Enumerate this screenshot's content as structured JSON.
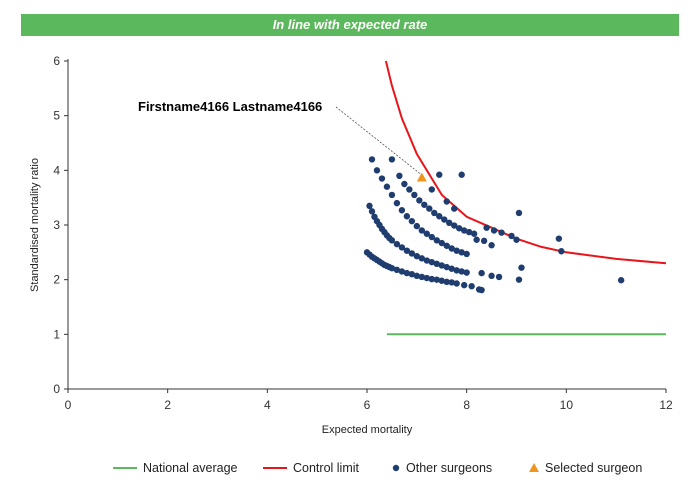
{
  "banner": {
    "text": "In line with expected rate",
    "color": "#5cb85c"
  },
  "chart_data": {
    "type": "scatter",
    "title": "",
    "xlabel": "Expected mortality",
    "ylabel": "Standardised mortality ratio",
    "xlim": [
      0,
      12
    ],
    "ylim": [
      0,
      6
    ],
    "xticks": [
      "0",
      "2",
      "4",
      "6",
      "8",
      "10",
      "12"
    ],
    "yticks": [
      "0",
      "1",
      "2",
      "3",
      "4",
      "5",
      "6"
    ],
    "grid": false,
    "legend_position": "bottom",
    "annotation": {
      "label": "Firstname4166 Lastname4166",
      "x": 7.1,
      "y": 3.87
    },
    "series": [
      {
        "name": "National average",
        "kind": "line",
        "color": "#5cb85c",
        "x": [
          6.4,
          12
        ],
        "y": [
          1,
          1
        ]
      },
      {
        "name": "Control limit",
        "kind": "line",
        "color": "#e8151b",
        "x": [
          6.38,
          6.5,
          6.7,
          7.0,
          7.5,
          8.0,
          8.5,
          9.0,
          9.5,
          10.0,
          11.0,
          12.0
        ],
        "y": [
          6.0,
          5.55,
          4.95,
          4.3,
          3.55,
          3.15,
          2.95,
          2.75,
          2.6,
          2.5,
          2.38,
          2.3
        ]
      },
      {
        "name": "Other surgeons",
        "kind": "scatter",
        "color": "#1f3d6e",
        "points": [
          [
            6.0,
            2.5
          ],
          [
            6.05,
            2.46
          ],
          [
            6.1,
            2.42
          ],
          [
            6.15,
            2.39
          ],
          [
            6.2,
            2.36
          ],
          [
            6.25,
            2.33
          ],
          [
            6.3,
            2.3
          ],
          [
            6.35,
            2.27
          ],
          [
            6.4,
            2.25
          ],
          [
            6.45,
            2.23
          ],
          [
            6.5,
            2.21
          ],
          [
            6.6,
            2.18
          ],
          [
            6.7,
            2.15
          ],
          [
            6.8,
            2.12
          ],
          [
            6.9,
            2.1
          ],
          [
            7.0,
            2.07
          ],
          [
            7.1,
            2.05
          ],
          [
            7.2,
            2.03
          ],
          [
            7.3,
            2.01
          ],
          [
            7.4,
            2.0
          ],
          [
            7.5,
            1.98
          ],
          [
            7.6,
            1.96
          ],
          [
            7.7,
            1.95
          ],
          [
            7.8,
            1.93
          ],
          [
            7.95,
            1.9
          ],
          [
            8.1,
            1.88
          ],
          [
            8.25,
            1.82
          ],
          [
            8.3,
            1.81
          ],
          [
            6.05,
            3.35
          ],
          [
            6.1,
            3.25
          ],
          [
            6.15,
            3.15
          ],
          [
            6.2,
            3.07
          ],
          [
            6.25,
            3.0
          ],
          [
            6.3,
            2.93
          ],
          [
            6.35,
            2.87
          ],
          [
            6.4,
            2.81
          ],
          [
            6.45,
            2.76
          ],
          [
            6.5,
            2.72
          ],
          [
            6.6,
            2.65
          ],
          [
            6.7,
            2.59
          ],
          [
            6.8,
            2.53
          ],
          [
            6.9,
            2.48
          ],
          [
            7.0,
            2.43
          ],
          [
            7.1,
            2.39
          ],
          [
            7.2,
            2.35
          ],
          [
            7.3,
            2.32
          ],
          [
            7.4,
            2.29
          ],
          [
            7.5,
            2.26
          ],
          [
            7.6,
            2.23
          ],
          [
            7.7,
            2.2
          ],
          [
            7.8,
            2.17
          ],
          [
            7.9,
            2.15
          ],
          [
            8.0,
            2.13
          ],
          [
            8.3,
            2.12
          ],
          [
            8.5,
            2.07
          ],
          [
            8.65,
            2.05
          ],
          [
            9.05,
            2.0
          ],
          [
            9.1,
            2.22
          ],
          [
            6.1,
            4.2
          ],
          [
            6.2,
            4.0
          ],
          [
            6.3,
            3.85
          ],
          [
            6.4,
            3.7
          ],
          [
            6.5,
            3.55
          ],
          [
            6.6,
            3.4
          ],
          [
            6.7,
            3.27
          ],
          [
            6.8,
            3.16
          ],
          [
            6.9,
            3.07
          ],
          [
            7.0,
            2.98
          ],
          [
            7.1,
            2.9
          ],
          [
            7.2,
            2.84
          ],
          [
            7.3,
            2.78
          ],
          [
            7.4,
            2.72
          ],
          [
            7.5,
            2.67
          ],
          [
            7.6,
            2.62
          ],
          [
            7.7,
            2.57
          ],
          [
            7.8,
            2.53
          ],
          [
            7.9,
            2.5
          ],
          [
            8.0,
            2.47
          ],
          [
            8.2,
            2.73
          ],
          [
            8.35,
            2.71
          ],
          [
            8.5,
            2.63
          ],
          [
            6.5,
            4.2
          ],
          [
            6.65,
            3.9
          ],
          [
            6.75,
            3.75
          ],
          [
            6.85,
            3.65
          ],
          [
            6.95,
            3.55
          ],
          [
            7.05,
            3.45
          ],
          [
            7.15,
            3.37
          ],
          [
            7.25,
            3.3
          ],
          [
            7.35,
            3.22
          ],
          [
            7.45,
            3.16
          ],
          [
            7.55,
            3.1
          ],
          [
            7.65,
            3.04
          ],
          [
            7.75,
            2.99
          ],
          [
            7.85,
            2.94
          ],
          [
            7.95,
            2.9
          ],
          [
            8.05,
            2.87
          ],
          [
            8.15,
            2.84
          ],
          [
            8.4,
            2.95
          ],
          [
            8.55,
            2.9
          ],
          [
            8.7,
            2.86
          ],
          [
            8.9,
            2.8
          ],
          [
            9.0,
            2.73
          ],
          [
            7.45,
            3.92
          ],
          [
            7.9,
            3.92
          ],
          [
            7.3,
            3.65
          ],
          [
            7.6,
            3.43
          ],
          [
            7.75,
            3.3
          ],
          [
            9.05,
            3.22
          ],
          [
            9.85,
            2.75
          ],
          [
            9.9,
            2.52
          ],
          [
            11.1,
            1.99
          ]
        ]
      },
      {
        "name": "Selected surgeon",
        "kind": "scatter",
        "color": "#f0961e",
        "points": [
          [
            7.1,
            3.87
          ]
        ]
      }
    ]
  }
}
